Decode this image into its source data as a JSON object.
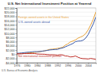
{
  "chart_data": {
    "type": "line",
    "title": "U.S. Net International Investment Position at Yearend",
    "annotations": [
      "U.S. Bureau of Economic Analysis"
    ],
    "x": [
      1976,
      1977,
      1978,
      1979,
      1980,
      1981,
      1982,
      1983,
      1984,
      1985,
      1986,
      1987,
      1988,
      1989,
      1990,
      1991,
      1992,
      1993,
      1994,
      1995,
      1996,
      1997,
      1998,
      1999,
      2000,
      2001,
      2002,
      2003,
      2004,
      2005,
      2006,
      2007
    ],
    "xlim": [
      1976,
      2007
    ],
    "xticks": [
      1976,
      1980,
      1984,
      1988,
      1992,
      1996,
      2000,
      2004
    ],
    "ylim": [
      -4000,
      22000
    ],
    "yticks": [
      {
        "value": -4000,
        "label": "-$4,000"
      },
      {
        "value": -2000,
        "label": "-$2,000"
      },
      {
        "value": 0,
        "label": "$0"
      },
      {
        "value": 2000,
        "label": "$2,000"
      },
      {
        "value": 4000,
        "label": "$4,000"
      },
      {
        "value": 6000,
        "label": "$6,000"
      },
      {
        "value": 8000,
        "label": "$8,000"
      },
      {
        "value": 10000,
        "label": "$10,000"
      },
      {
        "value": 12000,
        "label": "$12,000"
      },
      {
        "value": 14000,
        "label": "$14,000"
      },
      {
        "value": 16000,
        "label": "$16,000"
      },
      {
        "value": 18000,
        "label": "$18,000"
      },
      {
        "value": 20000,
        "label": "$20,000"
      },
      {
        "value": 22000,
        "label": "$22,000"
      }
    ],
    "grid": true,
    "series": [
      {
        "name": "Foreign-owned assets in the United States",
        "color": "#e8a33a",
        "values": [
          292,
          331,
          415,
          421,
          569,
          660,
          735,
          870,
          1042,
          1213,
          1422,
          1645,
          1976,
          2341,
          2424,
          2588,
          2784,
          3002,
          3310,
          4292,
          4904,
          5835,
          6264,
          6790,
          7620,
          8181,
          8734,
          9764,
          11588,
          13932,
          16619,
          20082
        ]
      },
      {
        "name": "U.S.-owned assets abroad",
        "color": "#3b5ba9",
        "values": [
          457,
          513,
          622,
          786,
          930,
          1001,
          1109,
          1211,
          1205,
          1288,
          1469,
          1646,
          1829,
          2070,
          2179,
          2286,
          2332,
          2754,
          2987,
          3486,
          4032,
          4567,
          5095,
          5974,
          6239,
          6309,
          6650,
          7638,
          9340,
          11962,
          14428,
          17640
        ]
      },
      {
        "name": "Net international investment position",
        "color": "#c0302a",
        "values": [
          165,
          182,
          207,
          365,
          361,
          341,
          374,
          341,
          163,
          75,
          47,
          1,
          -147,
          -271,
          -245,
          -302,
          -452,
          -248,
          -323,
          -806,
          -872,
          -1268,
          -1169,
          -816,
          -1381,
          -1872,
          -2084,
          -2126,
          -2248,
          -1970,
          -2191,
          -2442
        ]
      }
    ]
  }
}
